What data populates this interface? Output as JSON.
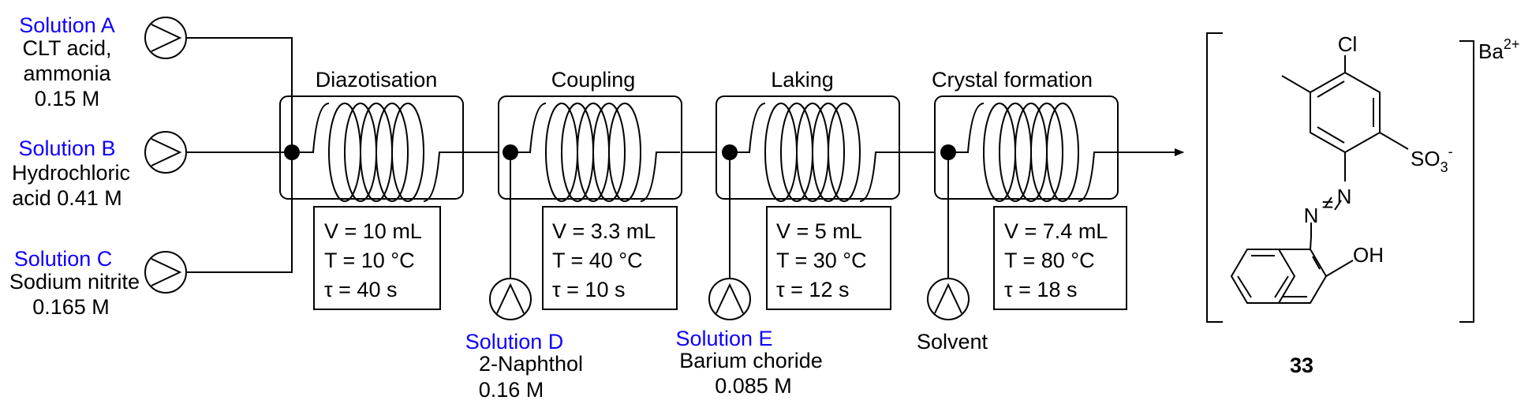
{
  "solutions": {
    "a": {
      "name": "Solution A",
      "line1": "CLT acid,",
      "line2": "ammonia",
      "line3": "0.15 M"
    },
    "b": {
      "name": "Solution B",
      "line1": "Hydrochloric",
      "line2": "acid 0.41 M"
    },
    "c": {
      "name": "Solution C",
      "line1": "Sodium nitrite",
      "line2": "0.165 M"
    },
    "d": {
      "name": "Solution D",
      "line1": "2-Naphthol",
      "line2": "0.16 M"
    },
    "e": {
      "name": "Solution E",
      "line1": "Barium choride",
      "line2": "0.085 M"
    },
    "solvent": {
      "name": "Solvent"
    }
  },
  "stages": [
    {
      "title": "Diazotisation",
      "v": "V = 10 mL",
      "t": "T = 10 °C",
      "tau": "τ = 40 s"
    },
    {
      "title": "Coupling",
      "v": "V = 3.3 mL",
      "t": "T = 40 °C",
      "tau": "τ = 10 s"
    },
    {
      "title": "Laking",
      "v": "V = 5 mL",
      "t": "T = 30 °C",
      "tau": "τ = 12 s"
    },
    {
      "title": "Crystal formation",
      "v": "V = 7.4 mL",
      "t": "T = 80 °C",
      "tau": "τ = 18 s"
    }
  ],
  "product": {
    "compound_number": "33",
    "cl": "Cl",
    "so3": "SO",
    "so3_sub": "3",
    "so3_charge": "-",
    "n1": "N",
    "eq": "=",
    "n2": "N",
    "oh": "OH",
    "ba": "Ba",
    "ba_charge": "2+"
  }
}
